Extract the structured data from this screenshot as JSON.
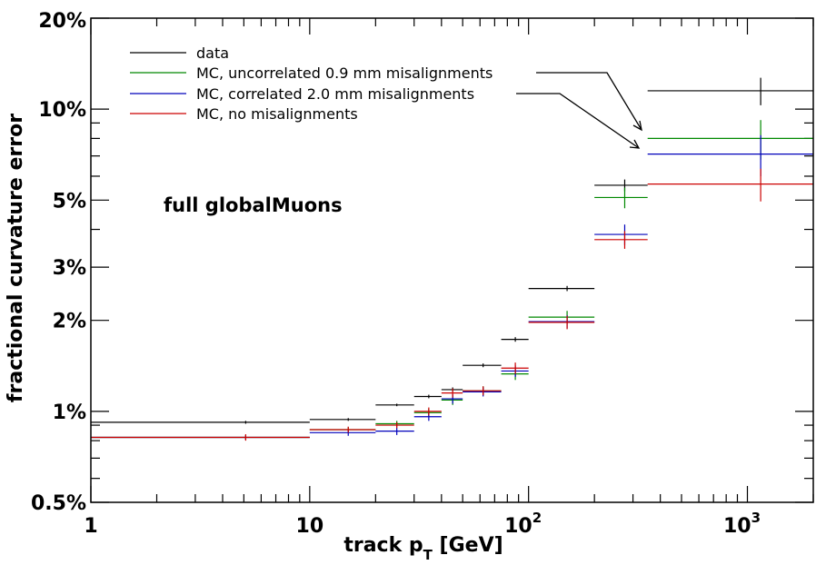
{
  "chart_data": {
    "type": "scatter",
    "xscale": "log",
    "yscale": "log",
    "xlim": [
      1,
      2000
    ],
    "ylim": [
      0.5,
      20
    ],
    "xlabel_main": "track p",
    "xlabel_sub": "T",
    "xlabel_unit": " [GeV]",
    "ylabel": "fractional curvature error",
    "x_tick_labels": [
      {
        "value": 1,
        "text": "1"
      },
      {
        "value": 10,
        "text": "10"
      },
      {
        "value": 100,
        "base": "10",
        "exp": "2"
      },
      {
        "value": 1000,
        "base": "10",
        "exp": "3"
      }
    ],
    "y_tick_labels": [
      {
        "value": 0.5,
        "text": "0.5%"
      },
      {
        "value": 1,
        "text": "1%"
      },
      {
        "value": 2,
        "text": "2%"
      },
      {
        "value": 3,
        "text": "3%"
      },
      {
        "value": 5,
        "text": "5%"
      },
      {
        "value": 10,
        "text": "10%"
      },
      {
        "value": 20,
        "text": "20%"
      }
    ],
    "annotation": "full globalMuons",
    "legend_placement": "top-left",
    "series": [
      {
        "name": "data",
        "color": "#000000",
        "points": [
          {
            "xlo": 1,
            "xhi": 10,
            "x": 5.1,
            "y": 0.92,
            "err": 0.01
          },
          {
            "xlo": 10,
            "xhi": 20,
            "x": 15,
            "y": 0.94,
            "err": 0.01
          },
          {
            "xlo": 20,
            "xhi": 30,
            "x": 25,
            "y": 1.05,
            "err": 0.01
          },
          {
            "xlo": 30,
            "xhi": 40,
            "x": 35,
            "y": 1.12,
            "err": 0.015
          },
          {
            "xlo": 40,
            "xhi": 50,
            "x": 45,
            "y": 1.18,
            "err": 0.02
          },
          {
            "xlo": 50,
            "xhi": 75,
            "x": 62,
            "y": 1.42,
            "err": 0.02
          },
          {
            "xlo": 75,
            "xhi": 100,
            "x": 87,
            "y": 1.73,
            "err": 0.03
          },
          {
            "xlo": 100,
            "xhi": 200,
            "x": 150,
            "y": 2.55,
            "err": 0.05
          },
          {
            "xlo": 200,
            "xhi": 350,
            "x": 275,
            "y": 5.6,
            "err": 0.25
          },
          {
            "xlo": 350,
            "xhi": 2000,
            "x": 1150,
            "y": 11.5,
            "err": 1.2
          }
        ]
      },
      {
        "name": "MC, uncorrelated 0.9 mm misalignments",
        "color": "#008800",
        "points": [
          {
            "xlo": 1,
            "xhi": 10,
            "x": 5.1,
            "y": 0.82,
            "err": 0.015
          },
          {
            "xlo": 10,
            "xhi": 20,
            "x": 15,
            "y": 0.87,
            "err": 0.015
          },
          {
            "xlo": 20,
            "xhi": 30,
            "x": 25,
            "y": 0.91,
            "err": 0.02
          },
          {
            "xlo": 30,
            "xhi": 40,
            "x": 35,
            "y": 0.99,
            "err": 0.03
          },
          {
            "xlo": 40,
            "xhi": 50,
            "x": 45,
            "y": 1.09,
            "err": 0.04
          },
          {
            "xlo": 50,
            "xhi": 75,
            "x": 62,
            "y": 1.17,
            "err": 0.04
          },
          {
            "xlo": 75,
            "xhi": 100,
            "x": 87,
            "y": 1.33,
            "err": 0.06
          },
          {
            "xlo": 100,
            "xhi": 200,
            "x": 150,
            "y": 2.05,
            "err": 0.1
          },
          {
            "xlo": 200,
            "xhi": 350,
            "x": 275,
            "y": 5.1,
            "err": 0.4
          },
          {
            "xlo": 350,
            "xhi": 2000,
            "x": 1150,
            "y": 8.0,
            "err": 1.2
          }
        ]
      },
      {
        "name": "MC, correlated 2.0 mm misalignments",
        "color": "#0000bb",
        "points": [
          {
            "xlo": 1,
            "xhi": 10,
            "x": 5.1,
            "y": 0.82,
            "err": 0.015
          },
          {
            "xlo": 10,
            "xhi": 20,
            "x": 15,
            "y": 0.85,
            "err": 0.02
          },
          {
            "xlo": 20,
            "xhi": 30,
            "x": 25,
            "y": 0.86,
            "err": 0.025
          },
          {
            "xlo": 30,
            "xhi": 40,
            "x": 35,
            "y": 0.96,
            "err": 0.03
          },
          {
            "xlo": 40,
            "xhi": 50,
            "x": 45,
            "y": 1.1,
            "err": 0.04
          },
          {
            "xlo": 50,
            "xhi": 75,
            "x": 62,
            "y": 1.16,
            "err": 0.04
          },
          {
            "xlo": 75,
            "xhi": 100,
            "x": 87,
            "y": 1.36,
            "err": 0.06
          },
          {
            "xlo": 100,
            "xhi": 200,
            "x": 150,
            "y": 1.98,
            "err": 0.1
          },
          {
            "xlo": 200,
            "xhi": 350,
            "x": 275,
            "y": 3.85,
            "err": 0.3
          },
          {
            "xlo": 350,
            "xhi": 2000,
            "x": 1150,
            "y": 7.1,
            "err": 1.1
          }
        ]
      },
      {
        "name": "MC, no misalignments",
        "color": "#cc0000",
        "points": [
          {
            "xlo": 1,
            "xhi": 10,
            "x": 5.1,
            "y": 0.82,
            "err": 0.02
          },
          {
            "xlo": 10,
            "xhi": 20,
            "x": 15,
            "y": 0.87,
            "err": 0.02
          },
          {
            "xlo": 20,
            "xhi": 30,
            "x": 25,
            "y": 0.9,
            "err": 0.02
          },
          {
            "xlo": 30,
            "xhi": 40,
            "x": 35,
            "y": 1.0,
            "err": 0.03
          },
          {
            "xlo": 40,
            "xhi": 50,
            "x": 45,
            "y": 1.15,
            "err": 0.04
          },
          {
            "xlo": 50,
            "xhi": 75,
            "x": 62,
            "y": 1.17,
            "err": 0.04
          },
          {
            "xlo": 75,
            "xhi": 100,
            "x": 87,
            "y": 1.39,
            "err": 0.06
          },
          {
            "xlo": 100,
            "xhi": 200,
            "x": 150,
            "y": 1.97,
            "err": 0.1
          },
          {
            "xlo": 200,
            "xhi": 350,
            "x": 275,
            "y": 3.7,
            "err": 0.25
          },
          {
            "xlo": 350,
            "xhi": 2000,
            "x": 1150,
            "y": 5.65,
            "err": 0.7
          }
        ]
      }
    ]
  }
}
